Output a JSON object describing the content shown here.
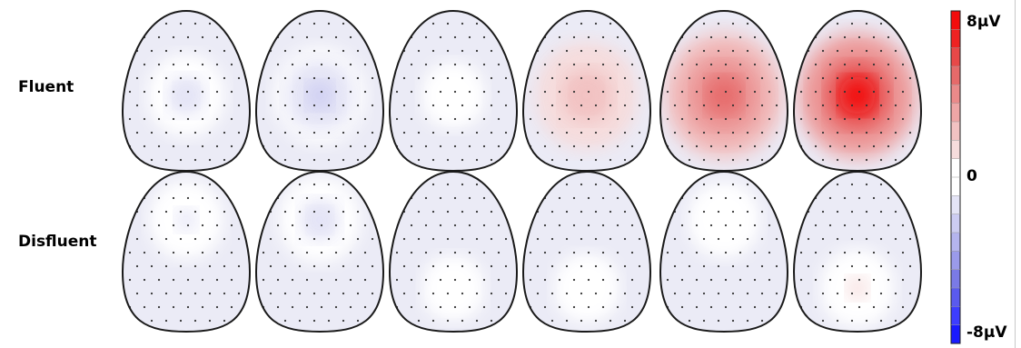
{
  "row_labels": [
    "Fluent",
    "Disfluent"
  ],
  "colorbar": {
    "max_label": "8µV",
    "zero_label": "0",
    "min_label": "-8µV",
    "colors": [
      "#1a1aff",
      "#3d3dff",
      "#5a5aee",
      "#7a7ae6",
      "#9a9aea",
      "#b4b4ee",
      "#ccccf2",
      "#e4e4f6",
      "#ffffff",
      "#ffffff",
      "#f6dcdc",
      "#f2c2c2",
      "#eea6a6",
      "#ea8a8a",
      "#e66a6a",
      "#e84848",
      "#ee2222",
      "#f20d0d"
    ]
  },
  "maps": {
    "fluent": [
      {
        "level": -0.15
      },
      {
        "level": -0.25
      },
      {
        "level": -0.03
      },
      {
        "level": 0.35
      },
      {
        "level": 0.7
      },
      {
        "level": 0.95
      }
    ],
    "disfluent": [
      {
        "level": -0.12
      },
      {
        "level": -0.18
      },
      {
        "level": 0.02
      },
      {
        "level": 0.05
      },
      {
        "level": -0.1
      },
      {
        "level": 0.12
      }
    ]
  }
}
